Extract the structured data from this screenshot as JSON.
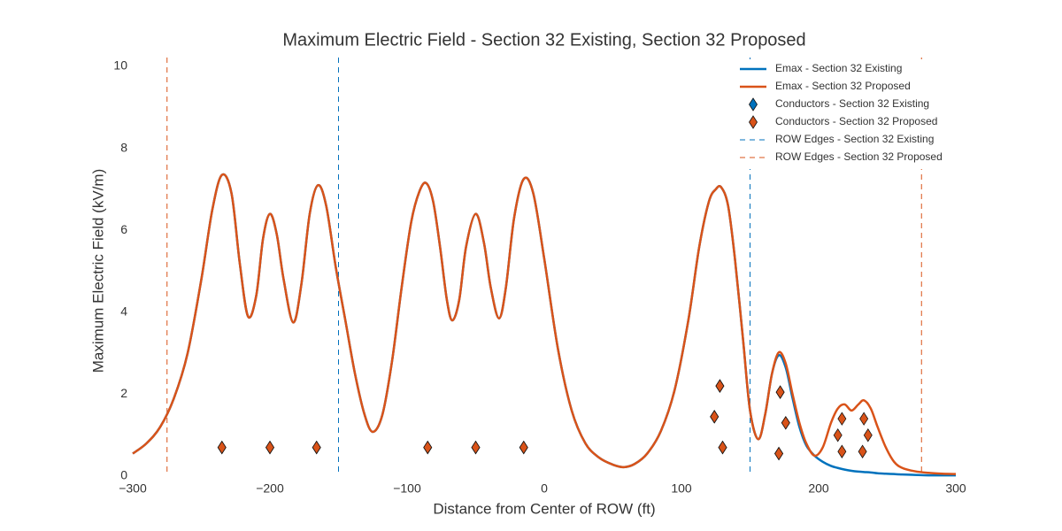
{
  "chart_data": {
    "type": "line",
    "title": "Maximum Electric Field - Section 32 Existing, Section 32 Proposed",
    "x_label": "Distance from Center of ROW (ft)",
    "y_label": "Maximum Electric Field (kV/m)",
    "xlim": [
      -300,
      300
    ],
    "ylim": [
      0,
      10
    ],
    "xticks": [
      {
        "value": -300,
        "label": "−300"
      },
      {
        "value": -200,
        "label": "−200"
      },
      {
        "value": -100,
        "label": "−100"
      },
      0,
      100,
      200,
      300
    ],
    "yticks": [
      0,
      2,
      4,
      6,
      8,
      10
    ],
    "grid": false,
    "legend": "upper right",
    "series": [
      {
        "name": "Emax - Section 32 Existing",
        "color": "#0072bd",
        "style": "line",
        "x": [
          -300,
          -290,
          -280,
          -270,
          -260,
          -250,
          -242,
          -235,
          -228,
          -222,
          -216,
          -210,
          -205,
          -200,
          -195,
          -190,
          -183,
          -177,
          -171,
          -165,
          -159,
          -152,
          -145,
          -138,
          -131,
          -125,
          -118,
          -111,
          -104,
          -97,
          -91,
          -86,
          -81,
          -76,
          -71,
          -67,
          -62,
          -57,
          -50,
          -44,
          -39,
          -33,
          -28,
          -22,
          -15,
          -8,
          0,
          10,
          20,
          30,
          40,
          50,
          58,
          66,
          75,
          85,
          95,
          105,
          113,
          120,
          125,
          129,
          134,
          139,
          145,
          150,
          156,
          161,
          166,
          171,
          176,
          181,
          186,
          191,
          197,
          203,
          209,
          214,
          219,
          224,
          229,
          233,
          238,
          243,
          249,
          255,
          261,
          270,
          280,
          290,
          300
        ],
        "values": [
          0.55,
          0.8,
          1.2,
          1.9,
          3.0,
          4.8,
          6.5,
          7.35,
          6.9,
          5.2,
          3.9,
          4.4,
          5.8,
          6.4,
          5.9,
          4.8,
          3.75,
          4.7,
          6.4,
          7.1,
          6.6,
          5.1,
          3.8,
          2.5,
          1.5,
          1.08,
          1.5,
          2.8,
          4.6,
          6.2,
          6.95,
          7.15,
          6.7,
          5.6,
          4.3,
          3.8,
          4.3,
          5.6,
          6.4,
          5.7,
          4.6,
          3.85,
          4.6,
          6.3,
          7.25,
          6.9,
          5.3,
          3.1,
          1.6,
          0.8,
          0.45,
          0.28,
          0.22,
          0.3,
          0.55,
          1.1,
          2.1,
          3.8,
          5.6,
          6.7,
          7.0,
          7.05,
          6.6,
          5.3,
          3.3,
          1.6,
          0.9,
          1.5,
          2.5,
          2.95,
          2.65,
          1.9,
          1.2,
          0.75,
          0.5,
          0.35,
          0.25,
          0.2,
          0.16,
          0.13,
          0.11,
          0.1,
          0.09,
          0.07,
          0.06,
          0.05,
          0.04,
          0.03,
          0.02,
          0.02,
          0.02
        ]
      },
      {
        "name": "Emax - Section 32 Proposed",
        "color": "#d95319",
        "style": "line",
        "x": [
          -300,
          -290,
          -280,
          -270,
          -260,
          -250,
          -242,
          -235,
          -228,
          -222,
          -216,
          -210,
          -205,
          -200,
          -195,
          -190,
          -183,
          -177,
          -171,
          -165,
          -159,
          -152,
          -145,
          -138,
          -131,
          -125,
          -118,
          -111,
          -104,
          -97,
          -91,
          -86,
          -81,
          -76,
          -71,
          -67,
          -62,
          -57,
          -50,
          -44,
          -39,
          -33,
          -28,
          -22,
          -15,
          -8,
          0,
          10,
          20,
          30,
          40,
          50,
          58,
          66,
          75,
          85,
          95,
          105,
          113,
          120,
          125,
          129,
          134,
          139,
          145,
          150,
          156,
          161,
          166,
          171,
          176,
          181,
          186,
          191,
          197,
          203,
          209,
          214,
          219,
          224,
          229,
          233,
          238,
          243,
          249,
          255,
          261,
          270,
          280,
          290,
          300
        ],
        "values": [
          0.55,
          0.8,
          1.2,
          1.9,
          3.0,
          4.8,
          6.5,
          7.35,
          6.9,
          5.2,
          3.9,
          4.4,
          5.8,
          6.4,
          5.9,
          4.8,
          3.75,
          4.7,
          6.4,
          7.1,
          6.6,
          5.1,
          3.8,
          2.5,
          1.5,
          1.08,
          1.5,
          2.8,
          4.6,
          6.2,
          6.95,
          7.15,
          6.7,
          5.6,
          4.3,
          3.8,
          4.3,
          5.6,
          6.4,
          5.7,
          4.6,
          3.85,
          4.6,
          6.3,
          7.25,
          6.9,
          5.3,
          3.1,
          1.6,
          0.8,
          0.45,
          0.28,
          0.22,
          0.3,
          0.55,
          1.1,
          2.1,
          3.8,
          5.6,
          6.7,
          7.0,
          7.05,
          6.6,
          5.3,
          3.3,
          1.6,
          0.9,
          1.5,
          2.5,
          3.02,
          2.75,
          2.0,
          1.3,
          0.8,
          0.5,
          0.7,
          1.3,
          1.65,
          1.75,
          1.6,
          1.75,
          1.85,
          1.65,
          1.2,
          0.7,
          0.35,
          0.2,
          0.12,
          0.08,
          0.06,
          0.05
        ]
      },
      {
        "name": "Conductors - Section 32 Existing",
        "color": "#0072bd",
        "style": "marker",
        "x": [
          -235,
          -200,
          -166,
          -85,
          -50,
          -15,
          128,
          124,
          130,
          172,
          176,
          171
        ],
        "values": [
          0.7,
          0.7,
          0.7,
          0.7,
          0.7,
          0.7,
          2.2,
          1.45,
          0.7,
          2.05,
          1.3,
          0.55
        ]
      },
      {
        "name": "Conductors - Section 32 Proposed",
        "color": "#d95319",
        "style": "marker",
        "x": [
          -235,
          -200,
          -166,
          -85,
          -50,
          -15,
          128,
          124,
          130,
          172,
          176,
          171,
          217,
          214,
          217,
          233,
          236,
          232
        ],
        "values": [
          0.7,
          0.7,
          0.7,
          0.7,
          0.7,
          0.7,
          2.2,
          1.45,
          0.7,
          2.05,
          1.3,
          0.55,
          1.4,
          1.0,
          0.6,
          1.4,
          1.0,
          0.6
        ]
      },
      {
        "name": "ROW Edges - Section 32 Existing",
        "color": "#0072bd",
        "style": "vline",
        "x": [
          -150,
          150
        ]
      },
      {
        "name": "ROW Edges - Section 32 Proposed",
        "color": "#d95319",
        "style": "vline",
        "x": [
          -275,
          275
        ]
      }
    ]
  }
}
